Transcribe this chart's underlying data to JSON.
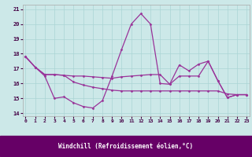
{
  "background_color": "#cce8e8",
  "grid_color": "#aad4d4",
  "line_color": "#993399",
  "xlabel": "Windchill (Refroidissement éolien,°C)",
  "xlabel_bg": "#660066",
  "xlabel_fg": "#ffffff",
  "xlim_min": -0.3,
  "xlim_max": 23.3,
  "ylim_min": 13.8,
  "ylim_max": 21.3,
  "yticks": [
    14,
    15,
    16,
    17,
    18,
    19,
    20,
    21
  ],
  "xticks": [
    0,
    1,
    2,
    3,
    4,
    5,
    6,
    7,
    8,
    9,
    10,
    11,
    12,
    13,
    14,
    15,
    16,
    17,
    18,
    19,
    20,
    21,
    22,
    23
  ],
  "line1_x": [
    0,
    1,
    2,
    3,
    4,
    5,
    6,
    7,
    8,
    9,
    10,
    11,
    12,
    13,
    14,
    15,
    16,
    17,
    18,
    19,
    20,
    21,
    22,
    23
  ],
  "line1_y": [
    17.8,
    17.1,
    16.5,
    15.0,
    15.1,
    14.7,
    14.45,
    14.35,
    14.85,
    16.5,
    18.3,
    20.0,
    20.7,
    20.0,
    16.0,
    15.95,
    17.25,
    16.85,
    17.3,
    17.5,
    16.2,
    15.05,
    15.25,
    15.25
  ],
  "line2_x": [
    0,
    1,
    2,
    3,
    4,
    5,
    6,
    7,
    8,
    9,
    10,
    11,
    12,
    13,
    14,
    15,
    16,
    17,
    18,
    19,
    20,
    21,
    22,
    23
  ],
  "line2_y": [
    17.8,
    17.1,
    16.6,
    16.6,
    16.55,
    16.5,
    16.5,
    16.45,
    16.4,
    16.35,
    16.45,
    16.5,
    16.55,
    16.6,
    16.6,
    15.95,
    16.5,
    16.5,
    16.5,
    17.5,
    16.2,
    15.05,
    15.25,
    15.25
  ],
  "line3_x": [
    0,
    1,
    2,
    3,
    4,
    5,
    6,
    7,
    8,
    9,
    10,
    11,
    12,
    13,
    14,
    15,
    16,
    17,
    18,
    19,
    20,
    21,
    22,
    23
  ],
  "line3_y": [
    17.8,
    17.1,
    16.6,
    16.6,
    16.55,
    16.1,
    15.9,
    15.75,
    15.65,
    15.55,
    15.5,
    15.5,
    15.5,
    15.5,
    15.5,
    15.5,
    15.5,
    15.5,
    15.5,
    15.5,
    15.5,
    15.3,
    15.25,
    15.25
  ]
}
